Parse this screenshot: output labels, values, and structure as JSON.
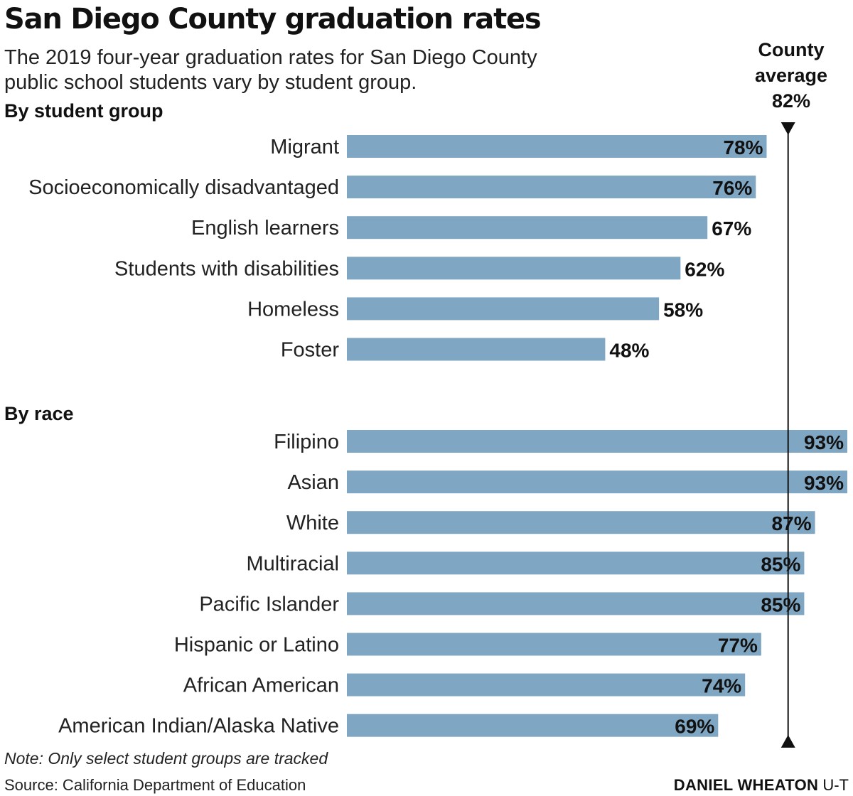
{
  "chart_data": {
    "type": "bar",
    "orientation": "horizontal",
    "title": "San Diego County graduation rates",
    "subtitle": "The 2019 four-year graduation rates for San Diego County public school students vary by student group.",
    "xlim": [
      0,
      93
    ],
    "value_suffix": "%",
    "bar_color": "#7fa7c3",
    "reference_line": {
      "label_lines": [
        "County",
        "average",
        "82%"
      ],
      "value": 82
    },
    "groups": [
      {
        "name": "By student group",
        "categories": [
          "Migrant",
          "Socioeconomically disadvantaged",
          "English learners",
          "Students with disabilities",
          "Homeless",
          "Foster"
        ],
        "values": [
          78,
          76,
          67,
          62,
          58,
          48
        ]
      },
      {
        "name": "By race",
        "categories": [
          "Filipino",
          "Asian",
          "White",
          "Multiracial",
          "Pacific Islander",
          "Hispanic or Latino",
          "African American",
          "American Indian/Alaska Native"
        ],
        "values": [
          93,
          93,
          87,
          85,
          85,
          77,
          74,
          69
        ]
      }
    ]
  },
  "footer": {
    "note": "Note: Only select student groups are tracked",
    "source": "Source: California Department of Education",
    "credit_name": "DANIEL WHEATON",
    "credit_org": "U-T"
  }
}
